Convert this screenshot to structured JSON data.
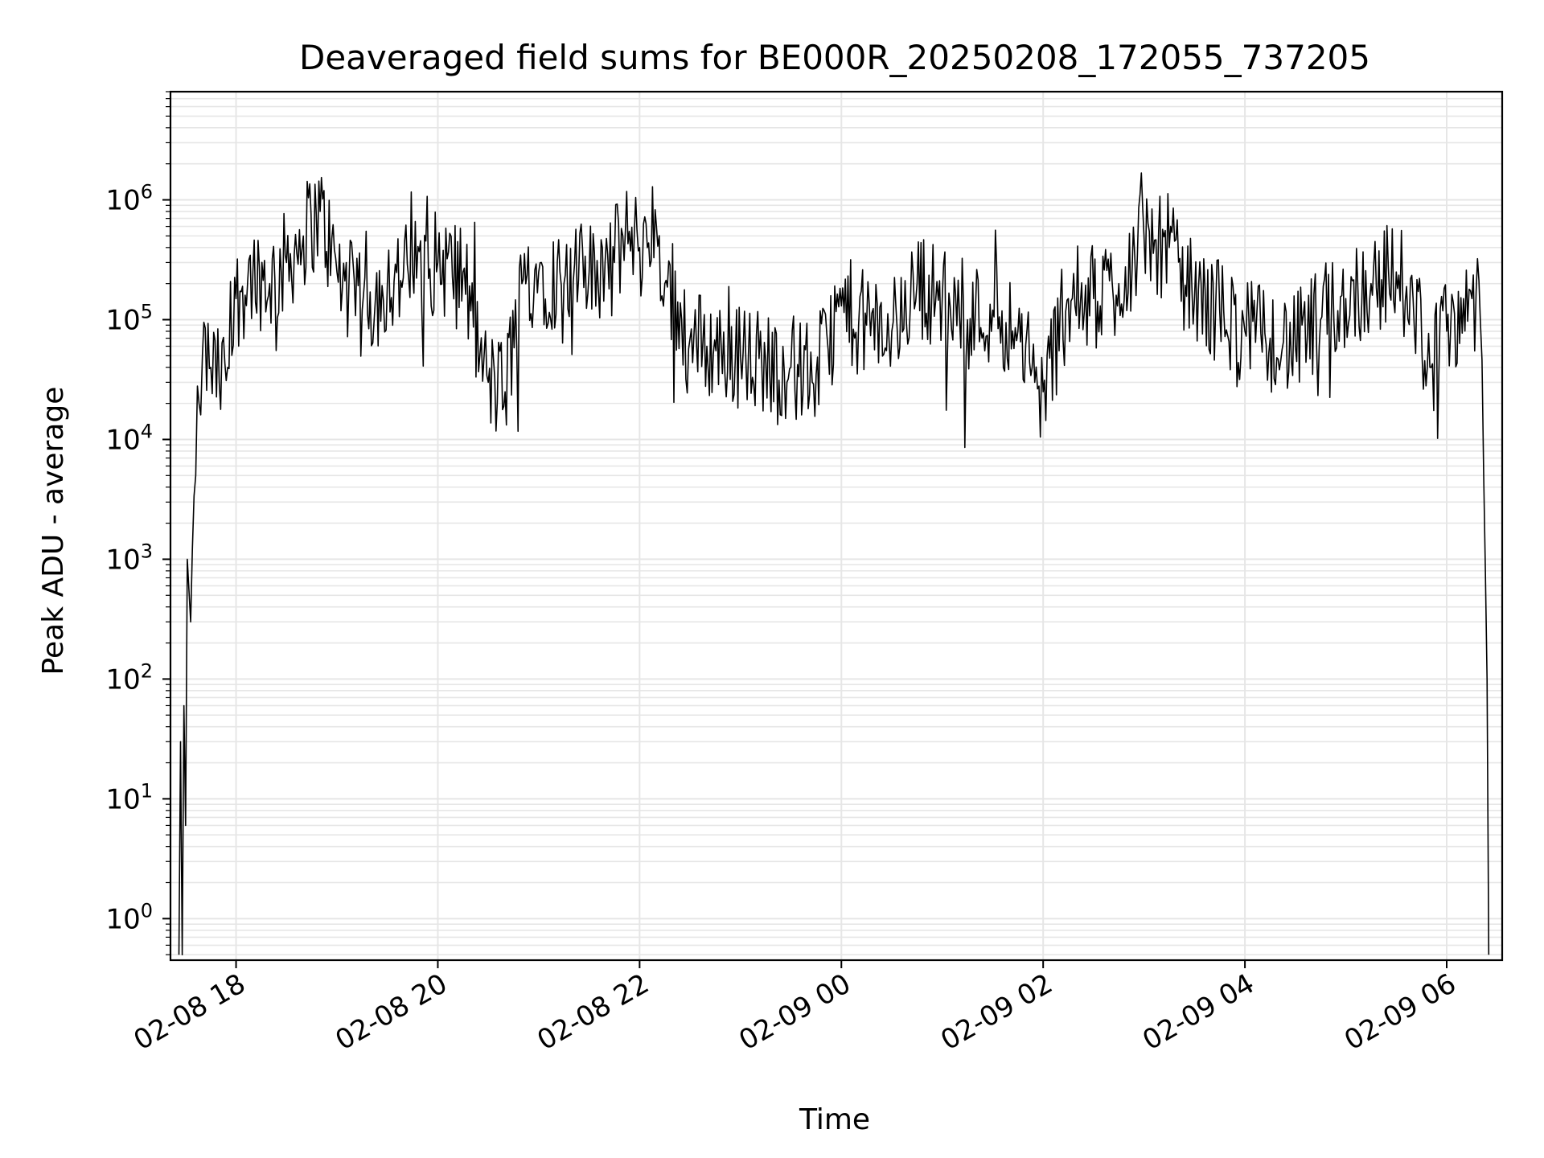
{
  "chart_data": {
    "type": "line",
    "title": "Deaveraged field sums for BE000R_20250208_172055_737205",
    "xlabel": "Time",
    "ylabel": "Peak ADU - average",
    "yscale": "log",
    "grid": true,
    "line_color": "#000000",
    "grid_color": "#e6e6e6",
    "xlim": [
      "2025-02-08 17:21",
      "2025-02-09 06:33"
    ],
    "ylim": [
      0.45,
      8000000
    ],
    "x_ticks": [
      {
        "value": "2025-02-08 18:00",
        "label": "02-08 18"
      },
      {
        "value": "2025-02-08 20:00",
        "label": "02-08 20"
      },
      {
        "value": "2025-02-08 22:00",
        "label": "02-08 22"
      },
      {
        "value": "2025-02-09 00:00",
        "label": "02-09 00"
      },
      {
        "value": "2025-02-09 02:00",
        "label": "02-09 02"
      },
      {
        "value": "2025-02-09 04:00",
        "label": "02-09 04"
      },
      {
        "value": "2025-02-09 06:00",
        "label": "02-09 06"
      }
    ],
    "y_ticks": [
      {
        "value": 1,
        "base": "10",
        "exp": "0"
      },
      {
        "value": 10,
        "base": "10",
        "exp": "1"
      },
      {
        "value": 100,
        "base": "10",
        "exp": "2"
      },
      {
        "value": 1000,
        "base": "10",
        "exp": "3"
      },
      {
        "value": 10000,
        "base": "10",
        "exp": "4"
      },
      {
        "value": 100000,
        "base": "10",
        "exp": "5"
      },
      {
        "value": 1000000,
        "base": "10",
        "exp": "6"
      }
    ],
    "series": [
      {
        "x": [
          "2025-02-08 17:26",
          "2025-02-08 17:27",
          "2025-02-08 17:28",
          "2025-02-08 17:29",
          "2025-02-08 17:30",
          "2025-02-08 17:31",
          "2025-02-08 17:33",
          "2025-02-08 17:34",
          "2025-02-08 17:36",
          "2025-02-08 17:38",
          "2025-02-08 17:40",
          "2025-02-08 17:45",
          "2025-02-08 17:50",
          "2025-02-08 17:55",
          "2025-02-08 18:00",
          "2025-02-08 18:10",
          "2025-02-08 18:20",
          "2025-02-08 18:30",
          "2025-02-08 18:40",
          "2025-02-08 18:50",
          "2025-02-08 19:00",
          "2025-02-08 19:15",
          "2025-02-08 19:30",
          "2025-02-08 19:45",
          "2025-02-08 20:00",
          "2025-02-08 20:15",
          "2025-02-08 20:25",
          "2025-02-08 20:30",
          "2025-02-08 20:40",
          "2025-02-08 20:50",
          "2025-02-08 21:00",
          "2025-02-08 21:15",
          "2025-02-08 21:30",
          "2025-02-08 21:45",
          "2025-02-08 21:50",
          "2025-02-08 22:00",
          "2025-02-08 22:10",
          "2025-02-08 22:15",
          "2025-02-08 22:25",
          "2025-02-08 22:30",
          "2025-02-08 22:40",
          "2025-02-08 23:00",
          "2025-02-08 23:15",
          "2025-02-08 23:30",
          "2025-02-08 23:45",
          "2025-02-09 00:00",
          "2025-02-09 00:15",
          "2025-02-09 00:30",
          "2025-02-09 00:45",
          "2025-02-09 01:00",
          "2025-02-09 01:15",
          "2025-02-09 01:30",
          "2025-02-09 01:45",
          "2025-02-09 01:55",
          "2025-02-09 02:00",
          "2025-02-09 02:15",
          "2025-02-09 02:30",
          "2025-02-09 02:45",
          "2025-02-09 03:00",
          "2025-02-09 03:15",
          "2025-02-09 03:30",
          "2025-02-09 03:45",
          "2025-02-09 04:00",
          "2025-02-09 04:15",
          "2025-02-09 04:30",
          "2025-02-09 04:45",
          "2025-02-09 05:00",
          "2025-02-09 05:15",
          "2025-02-09 05:30",
          "2025-02-09 05:40",
          "2025-02-09 05:50",
          "2025-02-09 06:00",
          "2025-02-09 06:10",
          "2025-02-09 06:15",
          "2025-02-09 06:20",
          "2025-02-09 06:22",
          "2025-02-09 06:23",
          "2025-02-09 06:24",
          "2025-02-09 06:25"
        ],
        "values": [
          0.5,
          30,
          0.5,
          60,
          6,
          1000,
          300,
          1200,
          5000,
          20000,
          50000,
          40000,
          30000,
          40000,
          150000,
          250000,
          200000,
          300000,
          500000,
          800000,
          250000,
          120000,
          200000,
          250000,
          300000,
          250000,
          50000,
          30000,
          25000,
          200000,
          250000,
          200000,
          250000,
          300000,
          500000,
          400000,
          600000,
          200000,
          100000,
          70000,
          60000,
          50000,
          45000,
          40000,
          35000,
          130000,
          90000,
          80000,
          200000,
          150000,
          100000,
          120000,
          80000,
          30000,
          25000,
          150000,
          150000,
          200000,
          500000,
          400000,
          150000,
          120000,
          80000,
          70000,
          60000,
          100000,
          150000,
          200000,
          250000,
          150000,
          40000,
          80000,
          150000,
          150000,
          100000,
          5000,
          800,
          100,
          0.5
        ]
      }
    ]
  }
}
